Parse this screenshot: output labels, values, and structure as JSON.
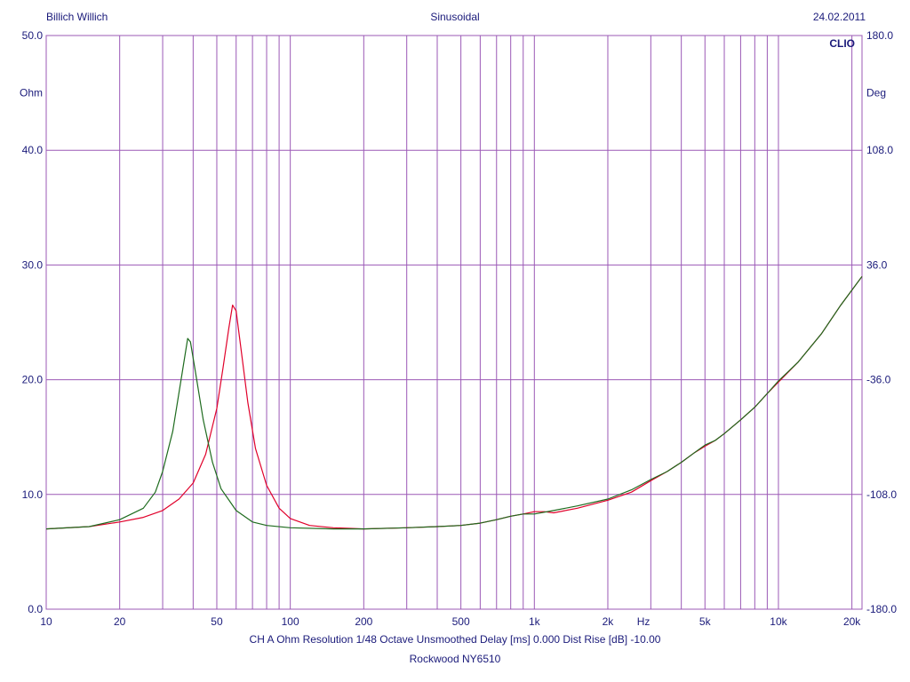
{
  "header": {
    "left": "Billich Willich",
    "center": "Sinusoidal",
    "right": "24.02.2011"
  },
  "brand": "CLIO",
  "footer": {
    "line1": "CH A   Ohm   Resolution 1/48 Octave   Unsmoothed   Delay [ms] 0.000   Dist Rise [dB] -10.00",
    "line2": "Rockwood NY6510"
  },
  "colors": {
    "grid": "#9b59b6",
    "axis_text": "#1a1a7a",
    "series_red": "#e0002a",
    "series_green": "#1e6b1e"
  },
  "chart_data": {
    "type": "line",
    "x_scale": "log",
    "xlim": [
      10,
      22000
    ],
    "ylim": [
      0,
      50
    ],
    "y2lim": [
      -180,
      180
    ],
    "xlabel": "Hz",
    "ylabel": "Ohm",
    "y2label": "Deg",
    "grid": true,
    "x_ticks": [
      {
        "value": 10,
        "label": "10"
      },
      {
        "value": 20,
        "label": "20"
      },
      {
        "value": 50,
        "label": "50"
      },
      {
        "value": 100,
        "label": "100"
      },
      {
        "value": 200,
        "label": "200"
      },
      {
        "value": 500,
        "label": "500"
      },
      {
        "value": 1000,
        "label": "1k"
      },
      {
        "value": 2000,
        "label": "2k"
      },
      {
        "value": 5000,
        "label": "5k"
      },
      {
        "value": 10000,
        "label": "10k"
      },
      {
        "value": 20000,
        "label": "20k"
      }
    ],
    "y_ticks": [
      {
        "value": 0,
        "label": "0.0"
      },
      {
        "value": 10,
        "label": "10.0"
      },
      {
        "value": 20,
        "label": "20.0"
      },
      {
        "value": 30,
        "label": "30.0"
      },
      {
        "value": 40,
        "label": "40.0"
      },
      {
        "value": 50,
        "label": "50.0"
      }
    ],
    "y2_ticks": [
      {
        "value": -180,
        "label": "-180.0"
      },
      {
        "value": -108,
        "label": "-108.0"
      },
      {
        "value": -36,
        "label": "-36.0"
      },
      {
        "value": 36,
        "label": "36.0"
      },
      {
        "value": 108,
        "label": "108.0"
      },
      {
        "value": 180,
        "label": "180.0"
      }
    ],
    "series": [
      {
        "color": "#e0002a",
        "points": [
          [
            10,
            7.0
          ],
          [
            15,
            7.2
          ],
          [
            20,
            7.6
          ],
          [
            25,
            8.0
          ],
          [
            30,
            8.6
          ],
          [
            35,
            9.6
          ],
          [
            40,
            11.0
          ],
          [
            45,
            13.5
          ],
          [
            50,
            17.5
          ],
          [
            53,
            21.0
          ],
          [
            56,
            24.5
          ],
          [
            58,
            26.5
          ],
          [
            60,
            26.0
          ],
          [
            63,
            22.5
          ],
          [
            67,
            18.0
          ],
          [
            72,
            14.0
          ],
          [
            80,
            10.8
          ],
          [
            90,
            8.8
          ],
          [
            100,
            7.9
          ],
          [
            120,
            7.3
          ],
          [
            150,
            7.1
          ],
          [
            200,
            7.0
          ],
          [
            300,
            7.1
          ],
          [
            400,
            7.2
          ],
          [
            500,
            7.3
          ],
          [
            600,
            7.5
          ],
          [
            700,
            7.8
          ],
          [
            800,
            8.1
          ],
          [
            900,
            8.3
          ],
          [
            1000,
            8.5
          ],
          [
            1100,
            8.5
          ],
          [
            1200,
            8.4
          ],
          [
            1500,
            8.8
          ],
          [
            2000,
            9.5
          ],
          [
            2500,
            10.2
          ],
          [
            3000,
            11.2
          ],
          [
            3500,
            12.0
          ],
          [
            4000,
            12.8
          ],
          [
            4500,
            13.6
          ],
          [
            5000,
            14.2
          ],
          [
            5500,
            14.7
          ],
          [
            6000,
            15.3
          ],
          [
            7000,
            16.5
          ],
          [
            8000,
            17.6
          ],
          [
            9000,
            18.8
          ],
          [
            10000,
            19.8
          ],
          [
            12000,
            21.5
          ],
          [
            15000,
            24.0
          ],
          [
            18000,
            26.5
          ],
          [
            22000,
            29.0
          ]
        ]
      },
      {
        "color": "#1e6b1e",
        "points": [
          [
            10,
            7.0
          ],
          [
            15,
            7.2
          ],
          [
            20,
            7.8
          ],
          [
            25,
            8.8
          ],
          [
            28,
            10.2
          ],
          [
            30,
            12.0
          ],
          [
            33,
            15.5
          ],
          [
            36,
            20.5
          ],
          [
            38,
            23.6
          ],
          [
            39,
            23.3
          ],
          [
            41,
            20.5
          ],
          [
            44,
            16.5
          ],
          [
            48,
            12.8
          ],
          [
            52,
            10.5
          ],
          [
            60,
            8.6
          ],
          [
            70,
            7.6
          ],
          [
            80,
            7.3
          ],
          [
            100,
            7.1
          ],
          [
            150,
            7.0
          ],
          [
            200,
            7.0
          ],
          [
            300,
            7.1
          ],
          [
            400,
            7.2
          ],
          [
            500,
            7.3
          ],
          [
            600,
            7.5
          ],
          [
            700,
            7.8
          ],
          [
            800,
            8.1
          ],
          [
            900,
            8.3
          ],
          [
            1000,
            8.3
          ],
          [
            1200,
            8.6
          ],
          [
            1500,
            9.0
          ],
          [
            2000,
            9.6
          ],
          [
            2500,
            10.4
          ],
          [
            3000,
            11.3
          ],
          [
            3500,
            12.0
          ],
          [
            4000,
            12.8
          ],
          [
            4500,
            13.6
          ],
          [
            5000,
            14.3
          ],
          [
            5500,
            14.7
          ],
          [
            6000,
            15.3
          ],
          [
            7000,
            16.5
          ],
          [
            8000,
            17.6
          ],
          [
            9000,
            18.8
          ],
          [
            10000,
            19.9
          ],
          [
            12000,
            21.5
          ],
          [
            15000,
            24.0
          ],
          [
            18000,
            26.5
          ],
          [
            22000,
            29.0
          ]
        ]
      }
    ]
  }
}
